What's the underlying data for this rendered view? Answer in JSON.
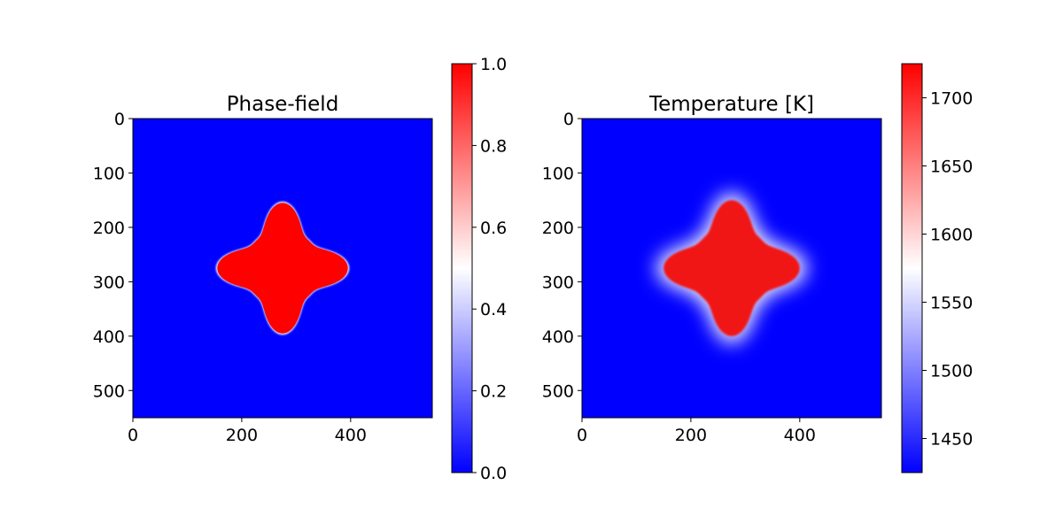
{
  "chart_data": [
    {
      "type": "heatmap",
      "title": "Phase-field",
      "colormap": "bwr",
      "shape": "four-fold star (dendrite) centered in the field",
      "center": [
        275,
        275
      ],
      "extent": [
        0,
        550
      ],
      "x_ticks": [
        0,
        200,
        400
      ],
      "y_ticks": [
        0,
        100,
        200,
        300,
        400,
        500
      ],
      "clim": [
        0.0,
        1.0
      ],
      "colorbar_ticks": [
        "0.0",
        "0.2",
        "0.4",
        "0.6",
        "0.8",
        "1.0"
      ],
      "colorbar_tick_values": [
        0.0,
        0.2,
        0.4,
        0.6,
        0.8,
        1.0
      ],
      "inside_value": 1.0,
      "outside_value": 0.0,
      "star_tip_radius": 120,
      "star_waist_radius": 70
    },
    {
      "type": "heatmap",
      "title": "Temperature [K]",
      "colormap": "bwr",
      "shape": "four-fold star (dendrite) with diffuse thermal boundary",
      "center": [
        275,
        275
      ],
      "extent": [
        0,
        550
      ],
      "x_ticks": [
        0,
        200,
        400
      ],
      "y_ticks": [
        0,
        100,
        200,
        300,
        400,
        500
      ],
      "clim": [
        1425,
        1725
      ],
      "colorbar_ticks": [
        "1450",
        "1500",
        "1550",
        "1600",
        "1650",
        "1700"
      ],
      "colorbar_tick_values": [
        1450,
        1500,
        1550,
        1600,
        1650,
        1700
      ],
      "inside_value": 1718,
      "outside_value": 1425,
      "star_tip_radius": 125,
      "star_waist_radius": 76
    }
  ],
  "colors": {
    "low": "#0000ff",
    "mid": "#ffffff",
    "high": "#ff0000"
  }
}
